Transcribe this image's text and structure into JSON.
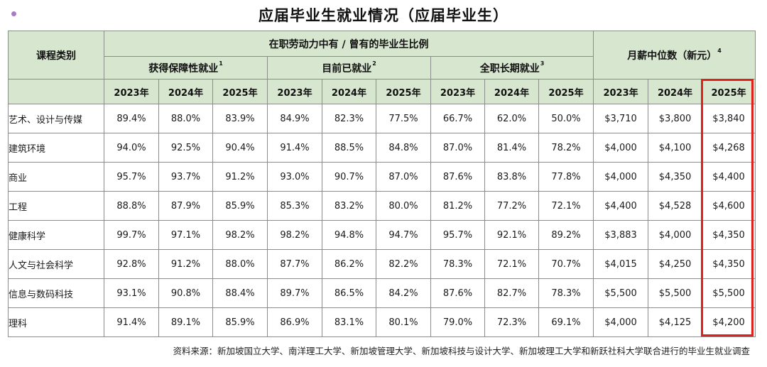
{
  "title": "应届毕业生就业情况（应届毕业生）",
  "header": {
    "category_label": "课程类别",
    "labor_group_label": "在职劳动力中有 / 曾有的毕业生比例",
    "salary_group_label": "月薪中位数（新元）",
    "salary_note": "4",
    "subgroups": [
      {
        "label": "获得保障性就业",
        "note": "1"
      },
      {
        "label": "目前已就业",
        "note": "2"
      },
      {
        "label": "全职长期就业",
        "note": "3"
      }
    ],
    "years": [
      "2023年",
      "2024年",
      "2025年"
    ]
  },
  "rows": [
    {
      "category": "艺术、设计与传媒",
      "values": [
        "89.4%",
        "88.0%",
        "83.9%",
        "84.9%",
        "82.3%",
        "77.5%",
        "66.7%",
        "62.0%",
        "50.0%",
        "$3,710",
        "$3,800",
        "$3,840"
      ]
    },
    {
      "category": "建筑环境",
      "values": [
        "94.0%",
        "92.5%",
        "90.4%",
        "91.4%",
        "88.5%",
        "84.8%",
        "87.0%",
        "81.4%",
        "78.2%",
        "$4,000",
        "$4,100",
        "$4,268"
      ]
    },
    {
      "category": "商业",
      "values": [
        "95.7%",
        "93.7%",
        "91.2%",
        "93.0%",
        "90.7%",
        "87.0%",
        "87.6%",
        "83.8%",
        "77.8%",
        "$4,000",
        "$4,350",
        "$4,400"
      ]
    },
    {
      "category": "工程",
      "values": [
        "88.8%",
        "87.9%",
        "85.9%",
        "85.3%",
        "83.2%",
        "80.0%",
        "81.2%",
        "77.2%",
        "72.1%",
        "$4,400",
        "$4,528",
        "$4,600"
      ]
    },
    {
      "category": "健康科学",
      "values": [
        "99.7%",
        "97.1%",
        "98.2%",
        "98.2%",
        "94.8%",
        "94.7%",
        "95.7%",
        "92.1%",
        "89.2%",
        "$3,883",
        "$4,000",
        "$4,350"
      ]
    },
    {
      "category": "人文与社会科学",
      "values": [
        "92.8%",
        "91.2%",
        "88.0%",
        "87.7%",
        "86.2%",
        "82.2%",
        "78.3%",
        "72.1%",
        "70.7%",
        "$4,015",
        "$4,250",
        "$4,350"
      ]
    },
    {
      "category": "信息与数码科技",
      "values": [
        "93.1%",
        "90.8%",
        "88.4%",
        "89.7%",
        "86.5%",
        "84.2%",
        "87.6%",
        "82.7%",
        "78.3%",
        "$5,500",
        "$5,500",
        "$5,500"
      ]
    },
    {
      "category": "理科",
      "values": [
        "91.4%",
        "89.1%",
        "85.9%",
        "86.9%",
        "83.1%",
        "80.1%",
        "79.0%",
        "72.3%",
        "69.1%",
        "$4,000",
        "$4,125",
        "$4,200"
      ]
    }
  ],
  "highlight_color": "#e0201a",
  "header_color": "#d7e6cf",
  "source": "资料来源：新加坡国立大学、南洋理工大学、新加坡管理大学、新加坡科技与设计大学、新加坡理工大学和新跃社科大学联合进行的毕业生就业调查"
}
